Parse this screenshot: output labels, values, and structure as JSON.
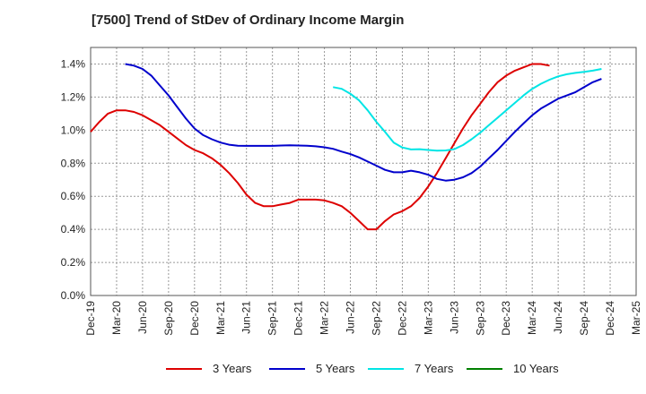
{
  "chart_data": {
    "type": "line",
    "title": "[7500]  Trend of StDev of Ordinary Income Margin",
    "xlabel": "",
    "ylabel": "",
    "x_tick_labels": [
      "Dec-19",
      "Mar-20",
      "Jun-20",
      "Sep-20",
      "Dec-20",
      "Mar-21",
      "Jun-21",
      "Sep-21",
      "Dec-21",
      "Mar-22",
      "Jun-22",
      "Sep-22",
      "Dec-22",
      "Mar-23",
      "Jun-23",
      "Sep-23",
      "Dec-23",
      "Mar-24",
      "Jun-24",
      "Sep-24",
      "Dec-24",
      "Mar-25"
    ],
    "y_tick_labels": [
      "0.0%",
      "0.2%",
      "0.4%",
      "0.6%",
      "0.8%",
      "1.0%",
      "1.2%",
      "1.4%"
    ],
    "ylim": [
      0,
      1.5
    ],
    "grid": true,
    "legend_position": "bottom",
    "series": [
      {
        "name": "3 Years",
        "color": "#dd0000",
        "points": [
          [
            0,
            0.99
          ],
          [
            1,
            1.05
          ],
          [
            2,
            1.1
          ],
          [
            3,
            1.12
          ],
          [
            4,
            1.12
          ],
          [
            5,
            1.11
          ],
          [
            6,
            1.09
          ],
          [
            7,
            1.06
          ],
          [
            8,
            1.03
          ],
          [
            9,
            0.99
          ],
          [
            10,
            0.95
          ],
          [
            11,
            0.91
          ],
          [
            12,
            0.88
          ],
          [
            13,
            0.86
          ],
          [
            14,
            0.83
          ],
          [
            15,
            0.79
          ],
          [
            16,
            0.74
          ],
          [
            17,
            0.68
          ],
          [
            18,
            0.61
          ],
          [
            19,
            0.56
          ],
          [
            20,
            0.54
          ],
          [
            21,
            0.54
          ],
          [
            22,
            0.55
          ],
          [
            23,
            0.56
          ],
          [
            24,
            0.58
          ],
          [
            25,
            0.58
          ],
          [
            26,
            0.58
          ],
          [
            27,
            0.575
          ],
          [
            28,
            0.56
          ],
          [
            29,
            0.54
          ],
          [
            30,
            0.5
          ],
          [
            31,
            0.45
          ],
          [
            32,
            0.4
          ],
          [
            33,
            0.4
          ],
          [
            34,
            0.45
          ],
          [
            35,
            0.49
          ],
          [
            36,
            0.51
          ],
          [
            37,
            0.54
          ],
          [
            38,
            0.59
          ],
          [
            39,
            0.66
          ],
          [
            40,
            0.74
          ],
          [
            41,
            0.83
          ],
          [
            42,
            0.92
          ],
          [
            43,
            1.01
          ],
          [
            44,
            1.09
          ],
          [
            45,
            1.16
          ],
          [
            46,
            1.23
          ],
          [
            47,
            1.29
          ],
          [
            48,
            1.33
          ],
          [
            49,
            1.36
          ],
          [
            50,
            1.38
          ],
          [
            51,
            1.4
          ],
          [
            52,
            1.4
          ],
          [
            53,
            1.39
          ]
        ]
      },
      {
        "name": "5 Years",
        "color": "#0000cc",
        "points": [
          [
            4,
            1.4
          ],
          [
            5,
            1.39
          ],
          [
            6,
            1.37
          ],
          [
            7,
            1.33
          ],
          [
            8,
            1.27
          ],
          [
            9,
            1.21
          ],
          [
            10,
            1.14
          ],
          [
            11,
            1.07
          ],
          [
            12,
            1.01
          ],
          [
            13,
            0.97
          ],
          [
            14,
            0.945
          ],
          [
            15,
            0.925
          ],
          [
            16,
            0.912
          ],
          [
            17,
            0.906
          ],
          [
            18,
            0.905
          ],
          [
            19,
            0.905
          ],
          [
            20,
            0.905
          ],
          [
            21,
            0.905
          ],
          [
            22,
            0.907
          ],
          [
            23,
            0.908
          ],
          [
            24,
            0.907
          ],
          [
            25,
            0.906
          ],
          [
            26,
            0.902
          ],
          [
            27,
            0.896
          ],
          [
            28,
            0.887
          ],
          [
            29,
            0.87
          ],
          [
            30,
            0.855
          ],
          [
            31,
            0.835
          ],
          [
            32,
            0.81
          ],
          [
            33,
            0.785
          ],
          [
            34,
            0.76
          ],
          [
            35,
            0.745
          ],
          [
            36,
            0.745
          ],
          [
            37,
            0.755
          ],
          [
            38,
            0.745
          ],
          [
            39,
            0.73
          ],
          [
            40,
            0.705
          ],
          [
            41,
            0.695
          ],
          [
            42,
            0.7
          ],
          [
            43,
            0.715
          ],
          [
            44,
            0.74
          ],
          [
            45,
            0.78
          ],
          [
            46,
            0.83
          ],
          [
            47,
            0.88
          ],
          [
            48,
            0.935
          ],
          [
            49,
            0.99
          ],
          [
            50,
            1.04
          ],
          [
            51,
            1.09
          ],
          [
            52,
            1.13
          ],
          [
            53,
            1.16
          ],
          [
            54,
            1.19
          ],
          [
            55,
            1.21
          ],
          [
            56,
            1.23
          ],
          [
            57,
            1.26
          ],
          [
            58,
            1.29
          ],
          [
            59,
            1.31
          ]
        ]
      },
      {
        "name": "7 Years",
        "color": "#00e5e5",
        "points": [
          [
            28,
            1.26
          ],
          [
            29,
            1.25
          ],
          [
            30,
            1.22
          ],
          [
            31,
            1.18
          ],
          [
            32,
            1.12
          ],
          [
            33,
            1.05
          ],
          [
            34,
            0.99
          ],
          [
            35,
            0.925
          ],
          [
            36,
            0.895
          ],
          [
            37,
            0.883
          ],
          [
            38,
            0.885
          ],
          [
            39,
            0.88
          ],
          [
            40,
            0.876
          ],
          [
            41,
            0.877
          ],
          [
            42,
            0.885
          ],
          [
            43,
            0.91
          ],
          [
            44,
            0.945
          ],
          [
            45,
            0.985
          ],
          [
            46,
            1.03
          ],
          [
            47,
            1.075
          ],
          [
            48,
            1.12
          ],
          [
            49,
            1.165
          ],
          [
            50,
            1.21
          ],
          [
            51,
            1.25
          ],
          [
            52,
            1.28
          ],
          [
            53,
            1.305
          ],
          [
            54,
            1.325
          ],
          [
            55,
            1.338
          ],
          [
            56,
            1.346
          ],
          [
            57,
            1.352
          ],
          [
            58,
            1.36
          ],
          [
            59,
            1.37
          ]
        ]
      },
      {
        "name": "10 Years",
        "color": "#008000",
        "points": []
      }
    ]
  }
}
